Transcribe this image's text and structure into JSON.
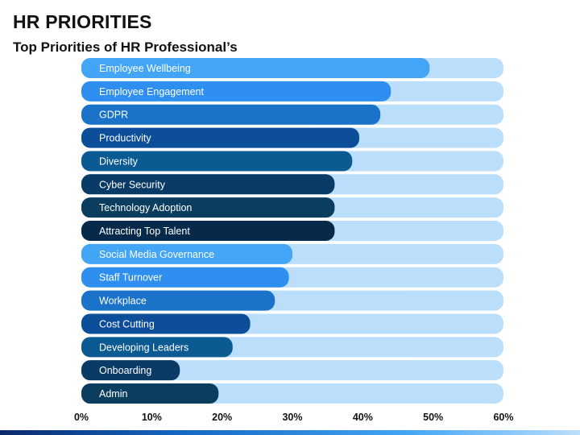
{
  "title": "HR PRIORITIES",
  "subtitle": "Top Priorities of HR Professional’s",
  "chart_data": {
    "type": "bar",
    "orientation": "horizontal",
    "categories": [
      "Employee Wellbeing",
      "Employee Engagement",
      "GDPR",
      "Productivity",
      "Diversity",
      "Cyber Security",
      "Technology Adoption",
      "Attracting Top Talent",
      "Social Media Governance",
      "Staff Turnover",
      "Workplace",
      "Cost Cutting",
      "Developing Leaders",
      "Onboarding",
      "Admin"
    ],
    "values": [
      49.5,
      44,
      42.5,
      39.5,
      38.5,
      36,
      36,
      36,
      30,
      29.5,
      27.5,
      24,
      21.5,
      14,
      19.5
    ],
    "xlim": [
      0,
      60
    ],
    "xticks": [
      "0%",
      "10%",
      "20%",
      "30%",
      "40%",
      "50%",
      "60%"
    ],
    "xtick_values": [
      0,
      10,
      20,
      30,
      40,
      50,
      60
    ],
    "grid": false,
    "colors": {
      "track": "#bbdefb",
      "bars": [
        "#42a5f5",
        "#2e8ff0",
        "#1a73c8",
        "#0d4e9a",
        "#0b5a91",
        "#0a3a66",
        "#0b3d5e",
        "#072a4a",
        "#42a5f5",
        "#2e8ff0",
        "#1a73c8",
        "#0d4e9a",
        "#0b5a91",
        "#0a3a66",
        "#0b3d5e"
      ]
    }
  }
}
